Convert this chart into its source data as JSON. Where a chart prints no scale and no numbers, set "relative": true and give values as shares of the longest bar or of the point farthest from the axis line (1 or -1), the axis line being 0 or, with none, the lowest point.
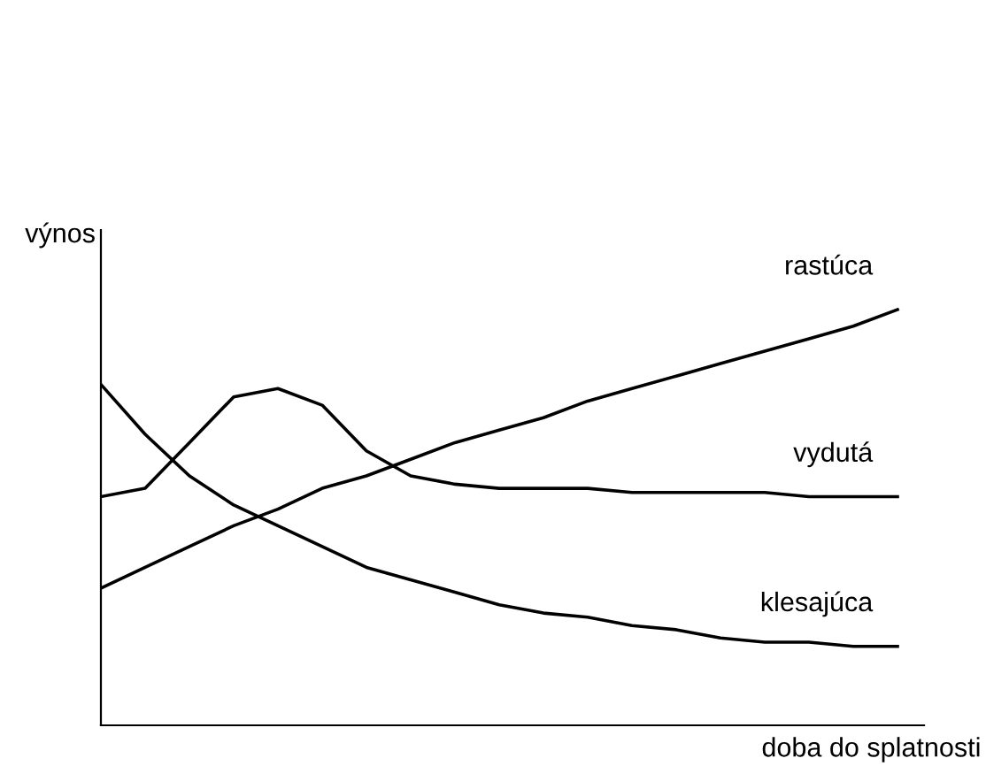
{
  "chart_data": {
    "type": "line",
    "relative": true,
    "xlabel": "doba do splatnosti",
    "ylabel": "výnos",
    "grid": false,
    "legend": false,
    "marker": "none",
    "line_style": "solid",
    "categories": [
      null,
      null,
      null,
      null,
      null,
      null,
      null,
      null,
      null,
      null,
      null,
      null,
      null,
      null,
      null,
      null,
      null,
      null,
      null
    ],
    "series": [
      {
        "name": "rastúca",
        "color": "#000000",
        "values": [
          0.33,
          0.38,
          0.43,
          0.48,
          0.52,
          0.57,
          0.6,
          0.64,
          0.68,
          0.71,
          0.74,
          0.78,
          0.81,
          0.84,
          0.87,
          0.9,
          0.93,
          0.96,
          1.0
        ]
      },
      {
        "name": "vydutá",
        "color": "#000000",
        "values": [
          0.55,
          0.57,
          0.68,
          0.79,
          0.81,
          0.77,
          0.66,
          0.6,
          0.58,
          0.57,
          0.57,
          0.57,
          0.56,
          0.56,
          0.56,
          0.56,
          0.55,
          0.55,
          0.55
        ]
      },
      {
        "name": "klesajúca",
        "color": "#000000",
        "values": [
          0.82,
          0.7,
          0.6,
          0.53,
          0.48,
          0.43,
          0.38,
          0.35,
          0.32,
          0.29,
          0.27,
          0.26,
          0.24,
          0.23,
          0.21,
          0.2,
          0.2,
          0.19,
          0.19
        ]
      }
    ]
  }
}
